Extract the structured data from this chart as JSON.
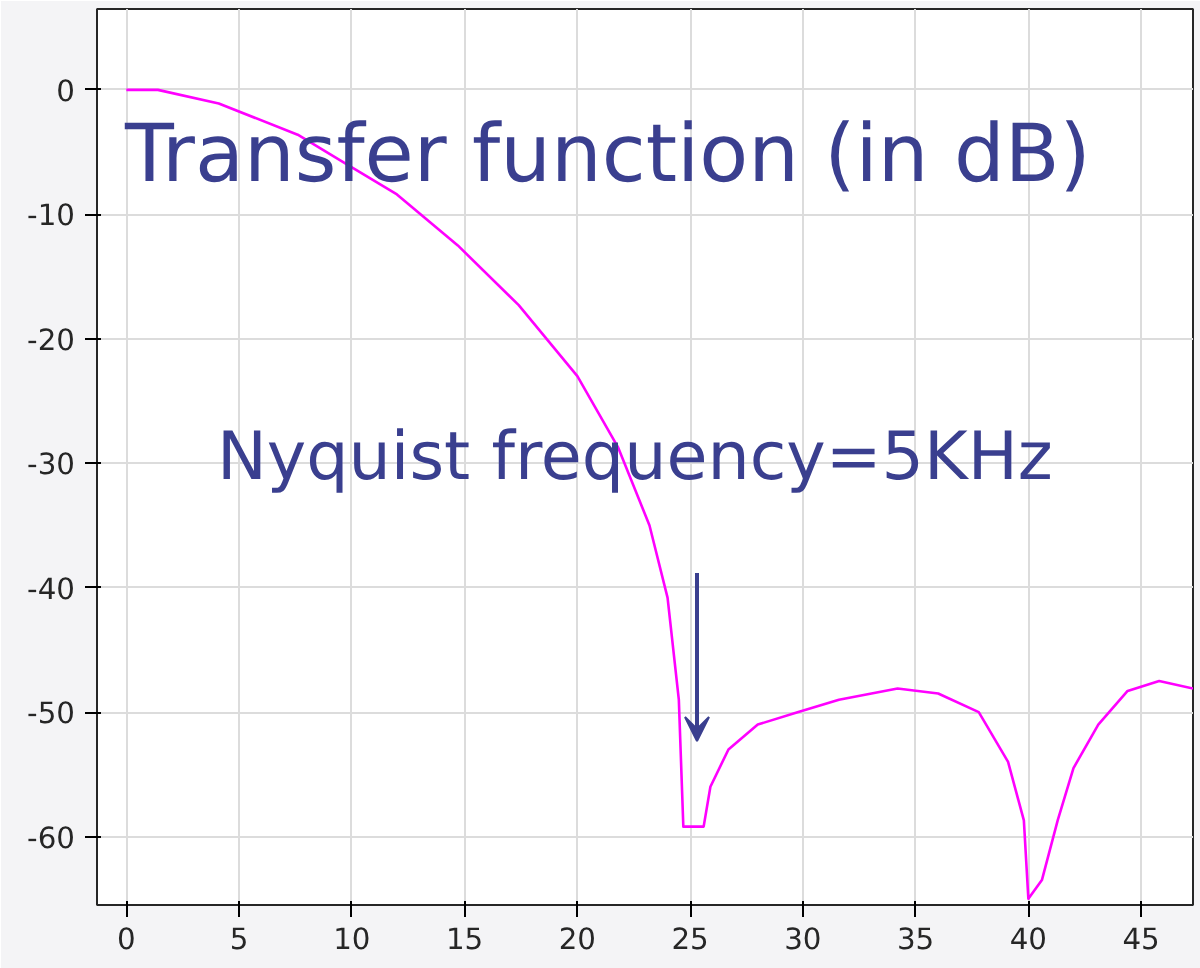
{
  "chart_data": {
    "type": "line",
    "title": "Transfer function (in dB)",
    "x": [
      0,
      1.4,
      4.1,
      7.6,
      9.8,
      12,
      14.7,
      17.4,
      20,
      21.8,
      23.2,
      24,
      24.5,
      24.7,
      25.6,
      25.9,
      26.7,
      28,
      29.8,
      31.6,
      34.2,
      36,
      37.8,
      39.1,
      39.8,
      40,
      40.6,
      41.3,
      42,
      43.1,
      44.4,
      45.8,
      47.3
    ],
    "series": [
      {
        "color": "#ff00ff",
        "values": [
          0,
          0,
          -1.1,
          -3.6,
          -6,
          -8.4,
          -12.5,
          -17.3,
          -23,
          -28.7,
          -35,
          -40.8,
          -49,
          -59.2,
          -59.2,
          -56,
          -53,
          -51,
          -50,
          -49,
          -48.1,
          -48.5,
          -50,
          -54,
          -58.7,
          -65,
          -63.5,
          -58.7,
          -54.5,
          -51,
          -48.3,
          -47.5,
          -48.1
        ]
      }
    ],
    "annotations": [
      "Nyquist frequency=5KHz"
    ],
    "xlim": [
      -1.3,
      47.3
    ],
    "ylim": [
      -65.5,
      6.5
    ],
    "xticks": [
      0,
      5,
      10,
      15,
      20,
      25,
      30,
      35,
      40,
      45
    ],
    "yticks": [
      -60,
      -50,
      -40,
      -30,
      -20,
      -10,
      0
    ],
    "grid": true
  }
}
